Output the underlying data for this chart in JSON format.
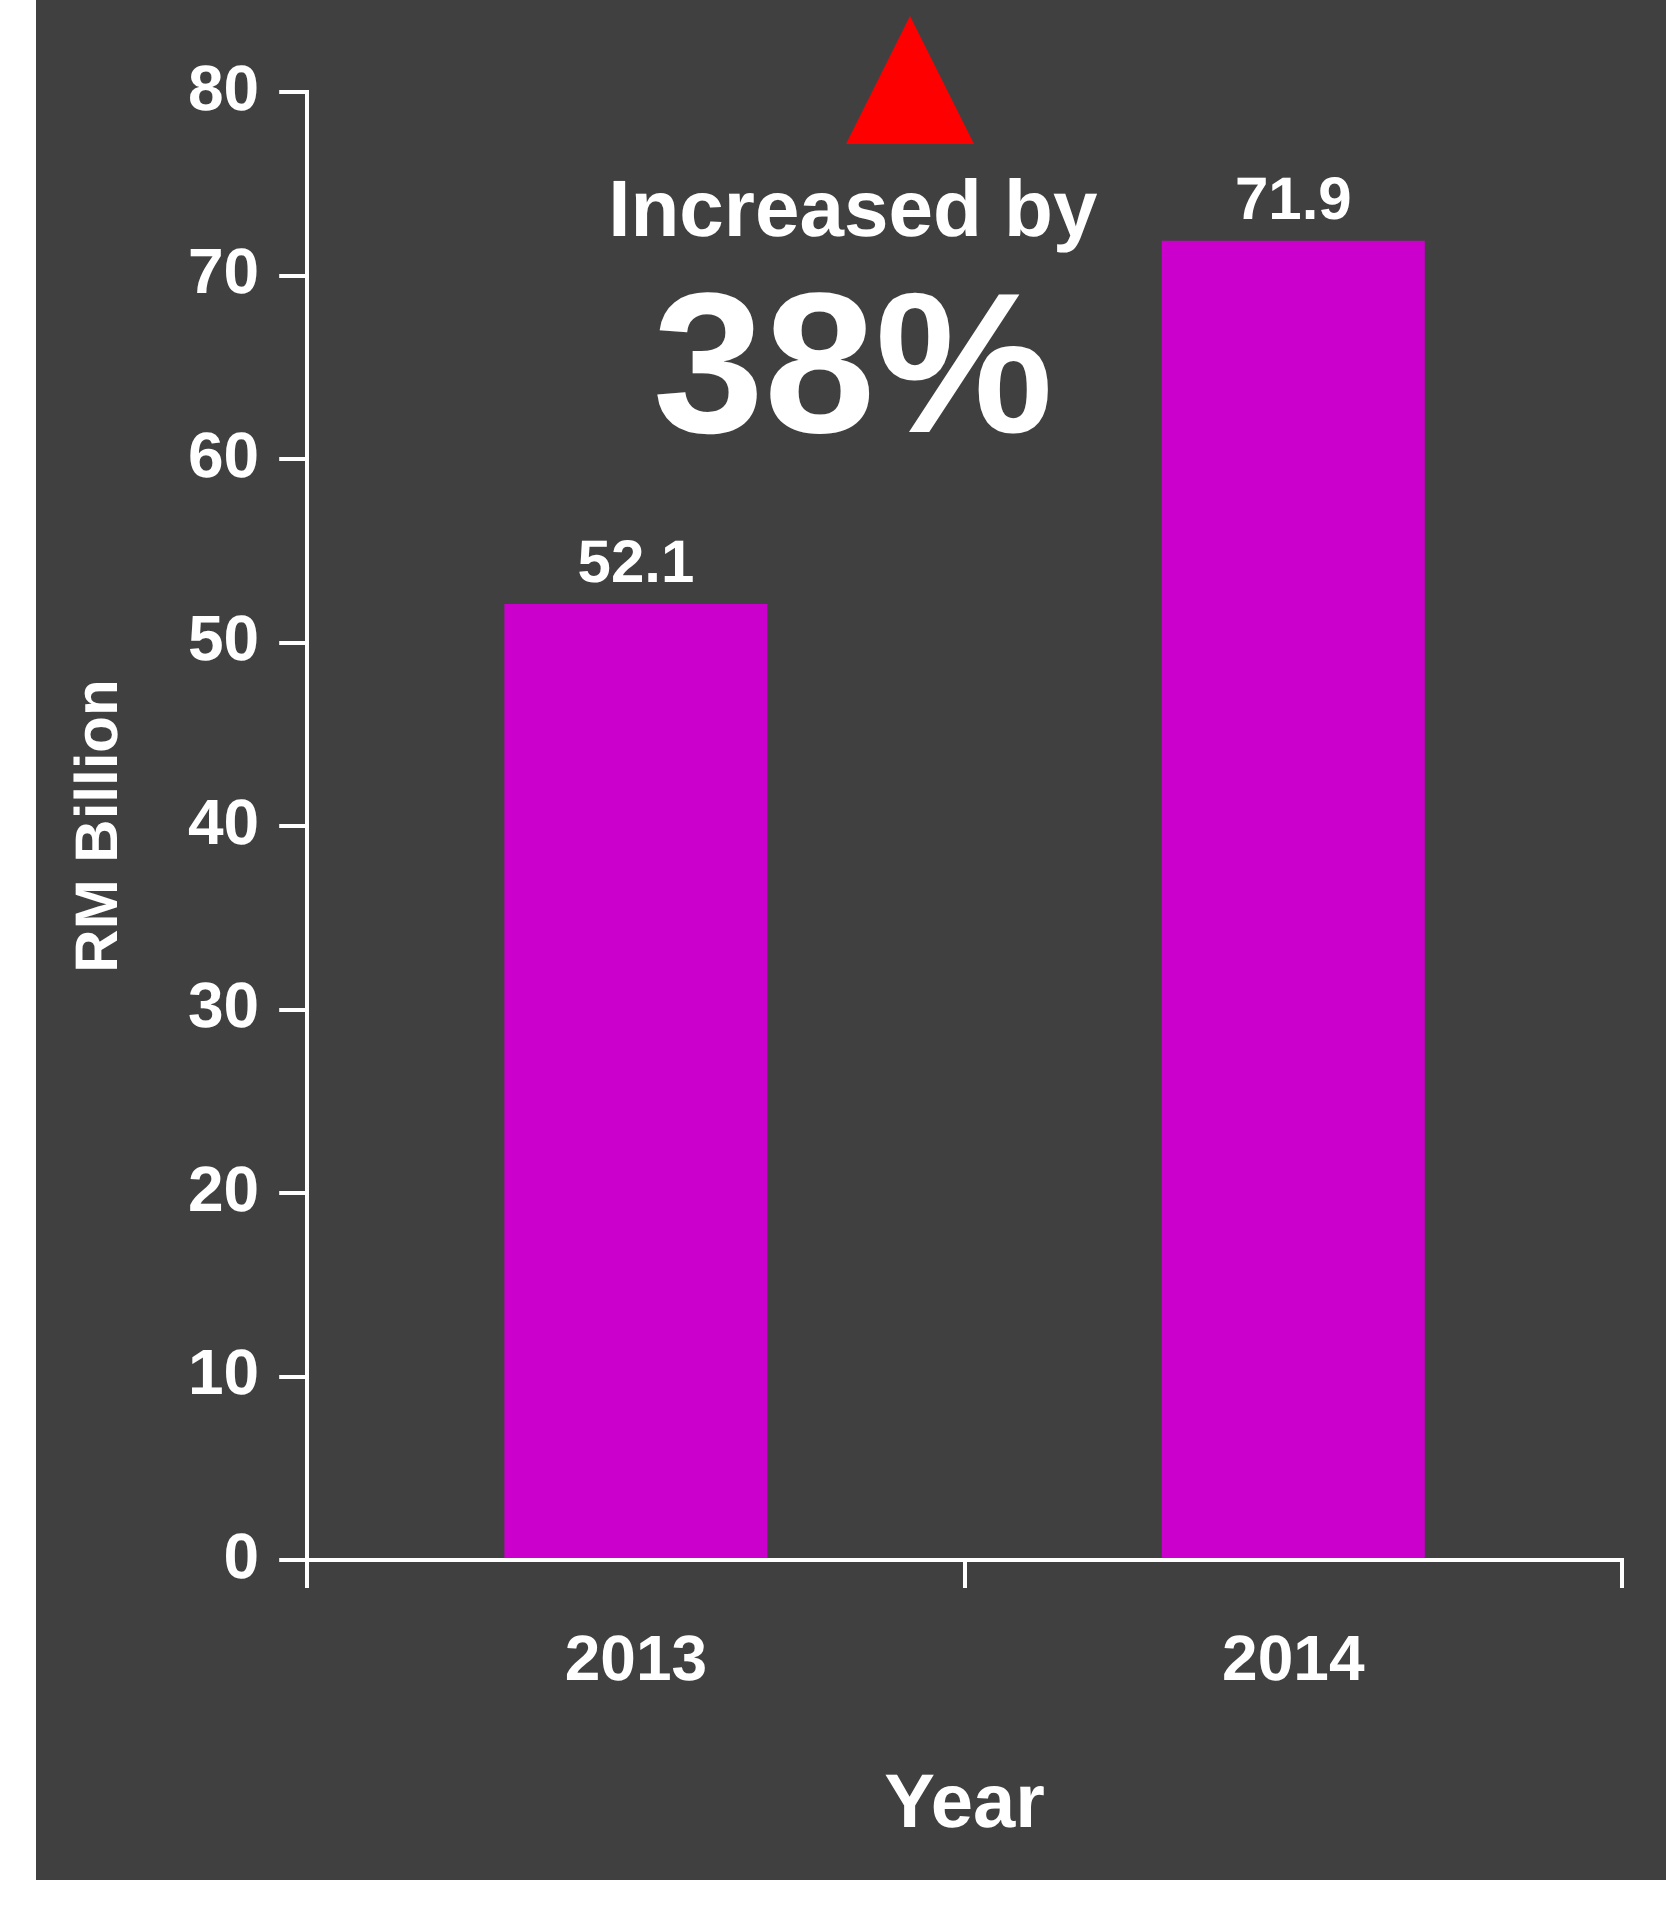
{
  "chart_data": {
    "type": "bar",
    "categories": [
      "2013",
      "2014"
    ],
    "values": [
      52.1,
      71.9
    ],
    "color": "#cc00cc",
    "xlabel": "Year",
    "ylabel": "RM Billion",
    "ylim": [
      0,
      80
    ],
    "yticks": [
      0,
      10,
      20,
      30,
      40,
      50,
      60,
      70,
      80
    ],
    "grid": false,
    "legend": false,
    "data_labels": true,
    "annotations": [
      "Increased by",
      "38%"
    ]
  }
}
